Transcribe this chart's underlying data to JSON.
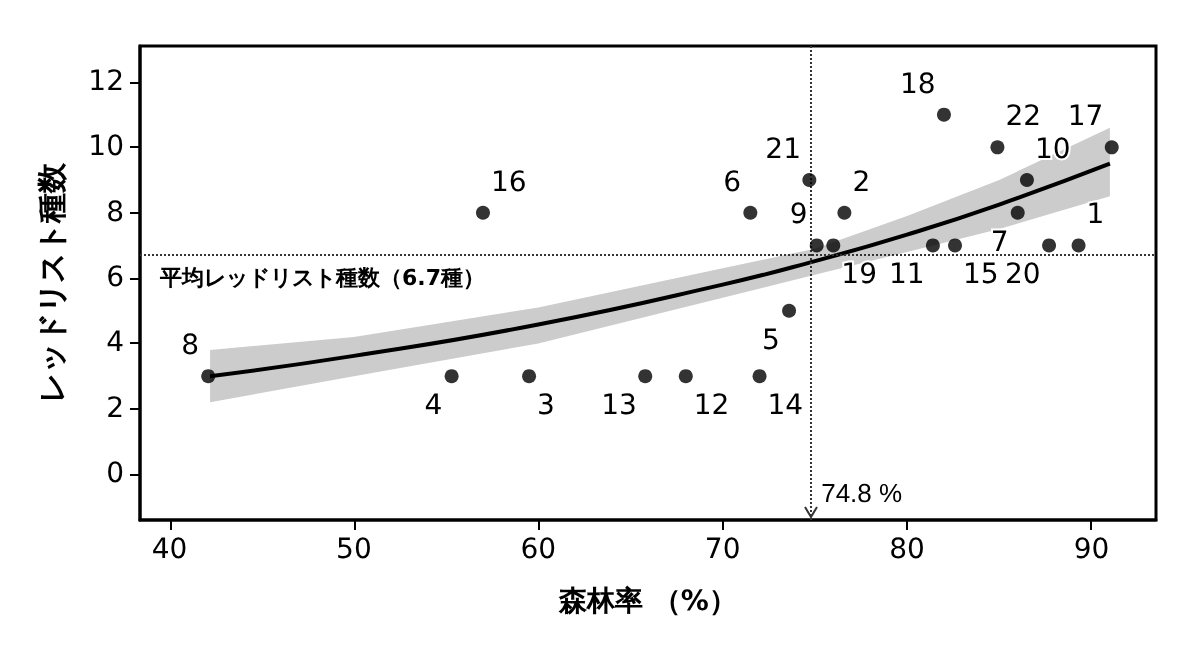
{
  "chart_data": {
    "type": "scatter",
    "xlabel": "森林率 （%）",
    "ylabel": "レッドリスト種数",
    "xlim": [
      38.4,
      93.5
    ],
    "xticks": [
      40,
      50,
      60,
      70,
      80,
      90
    ],
    "ylim": [
      -1.4,
      13.1
    ],
    "yticks": [
      0,
      2,
      4,
      6,
      8,
      10,
      12
    ],
    "marker": "circle",
    "ref_lines": [
      {
        "axis": "y",
        "value": 6.7,
        "label": "平均レッドリスト種数（6.7種）",
        "line_style": "dotted"
      },
      {
        "axis": "x",
        "value": 74.8,
        "label": "74.8 %",
        "line_style": "dotted"
      }
    ],
    "annotations": [
      {
        "text": "1",
        "x": 89.3,
        "y": 7
      },
      {
        "text": "2",
        "x": 76.6,
        "y": 8
      },
      {
        "text": "3",
        "x": 59.5,
        "y": 3
      },
      {
        "text": "4",
        "x": 55.3,
        "y": 3
      },
      {
        "text": "5",
        "x": 73.6,
        "y": 5
      },
      {
        "text": "6",
        "x": 71.5,
        "y": 8
      },
      {
        "text": "7",
        "x": 86.0,
        "y": 8
      },
      {
        "text": "8",
        "x": 42.1,
        "y": 3
      },
      {
        "text": "9",
        "x": 75.1,
        "y": 7
      },
      {
        "text": "10",
        "x": 86.5,
        "y": 9
      },
      {
        "text": "11",
        "x": 81.4,
        "y": 7
      },
      {
        "text": "12",
        "x": 68.0,
        "y": 3
      },
      {
        "text": "13",
        "x": 65.8,
        "y": 3
      },
      {
        "text": "14",
        "x": 72.0,
        "y": 3
      },
      {
        "text": "15",
        "x": 82.6,
        "y": 7
      },
      {
        "text": "16",
        "x": 57.0,
        "y": 8
      },
      {
        "text": "17",
        "x": 91.1,
        "y": 10
      },
      {
        "text": "18",
        "x": 82.0,
        "y": 11
      },
      {
        "text": "19",
        "x": 76.0,
        "y": 7
      },
      {
        "text": "20",
        "x": 87.7,
        "y": 7
      },
      {
        "text": "21",
        "x": 74.7,
        "y": 9
      },
      {
        "text": "22",
        "x": 84.9,
        "y": 10
      }
    ],
    "series": [
      {
        "color": "#000000",
        "x": [
          89.3,
          76.6,
          59.5,
          55.3,
          73.6,
          71.5,
          86.0,
          42.1,
          75.1,
          86.5,
          81.4,
          68.0,
          65.8,
          72.0,
          82.6,
          57.0,
          91.1,
          82.0,
          76.0,
          87.7,
          74.7,
          84.9
        ],
        "values": [
          7,
          8,
          3,
          3,
          5,
          8,
          8,
          3,
          7,
          9,
          7,
          3,
          3,
          3,
          7,
          8,
          10,
          11,
          7,
          7,
          9,
          10
        ]
      },
      {
        "type": "line",
        "color": "#000000",
        "marker": "none",
        "line_style": "solid",
        "x": [
          42.2,
          50,
          60,
          70,
          75,
          80,
          85,
          91
        ],
        "values": [
          3.0,
          3.62,
          4.58,
          5.8,
          6.52,
          7.33,
          8.25,
          9.5
        ],
        "lower": [
          2.2,
          3.0,
          4.0,
          5.4,
          6.1,
          6.8,
          7.5,
          8.5
        ],
        "upper": [
          3.8,
          4.2,
          5.1,
          6.3,
          6.9,
          7.9,
          9.0,
          10.6
        ]
      }
    ]
  }
}
